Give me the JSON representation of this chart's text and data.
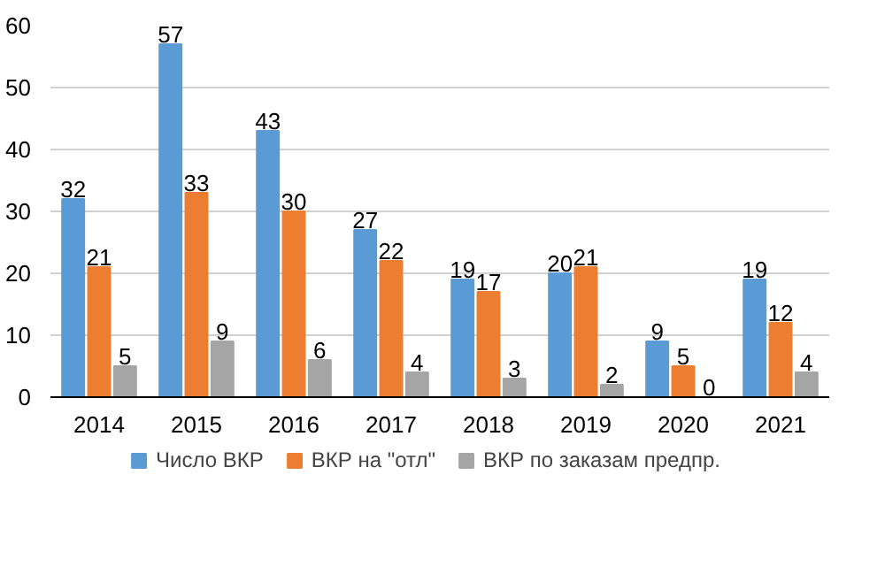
{
  "chart_data": {
    "type": "bar",
    "categories": [
      "2014",
      "2015",
      "2016",
      "2017",
      "2018",
      "2019",
      "2020",
      "2021"
    ],
    "series": [
      {
        "name": "Число ВКР",
        "color": "#5b9bd5",
        "values": [
          32,
          57,
          43,
          27,
          19,
          20,
          9,
          19
        ]
      },
      {
        "name": "ВКР на \"отл\"",
        "color": "#ed7d31",
        "values": [
          21,
          33,
          30,
          22,
          17,
          21,
          5,
          12
        ]
      },
      {
        "name": "ВКР по заказам предпр.",
        "color": "#a5a5a5",
        "values": [
          5,
          9,
          6,
          4,
          3,
          2,
          0,
          4
        ]
      }
    ],
    "ylim": [
      0,
      60
    ],
    "yticks": [
      0,
      10,
      20,
      30,
      40,
      50,
      60
    ],
    "grid": "y",
    "legend": "bottom",
    "data_labels": true
  }
}
